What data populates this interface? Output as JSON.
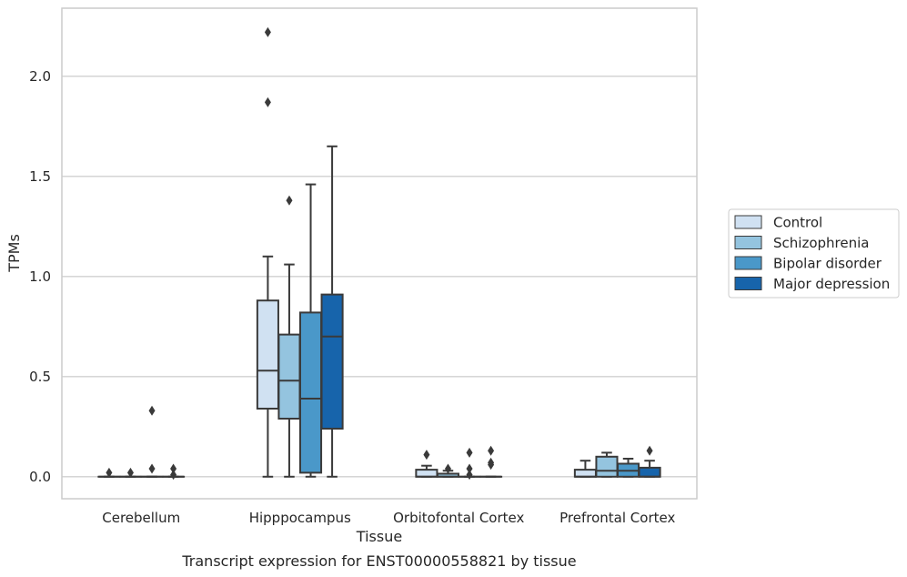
{
  "chart_data": {
    "type": "boxplot",
    "caption": "Transcript expression for ENST00000558821 by tissue",
    "xlabel": "Tissue",
    "ylabel": "TPMs",
    "ylim": [
      -0.11,
      2.34
    ],
    "yticks": [
      0.0,
      0.5,
      1.0,
      1.5,
      2.0
    ],
    "ytick_labels": [
      "0.0",
      "0.5",
      "1.0",
      "1.5",
      "2.0"
    ],
    "grid": "horizontal",
    "legend_position": "right",
    "categories": [
      "Cerebellum",
      "Hipppocampus",
      "Orbitofontal Cortex",
      "Prefrontal Cortex"
    ],
    "series": [
      {
        "name": "Control",
        "color": "#d0e1f2",
        "boxes": [
          {
            "whislo": 0.0,
            "q1": 0.0,
            "med": 0.0,
            "q3": 0.0,
            "whishi": 0.0,
            "fliers": [
              0.02
            ]
          },
          {
            "whislo": 0.0,
            "q1": 0.34,
            "med": 0.53,
            "q3": 0.88,
            "whishi": 1.1,
            "fliers": [
              1.87,
              2.22
            ]
          },
          {
            "whislo": 0.0,
            "q1": 0.0,
            "med": 0.0,
            "q3": 0.035,
            "whishi": 0.055,
            "fliers": [
              0.11
            ]
          },
          {
            "whislo": 0.0,
            "q1": 0.0,
            "med": 0.0,
            "q3": 0.035,
            "whishi": 0.08,
            "fliers": []
          }
        ]
      },
      {
        "name": "Schizophrenia",
        "color": "#94c4df",
        "boxes": [
          {
            "whislo": 0.0,
            "q1": 0.0,
            "med": 0.0,
            "q3": 0.0,
            "whishi": 0.0,
            "fliers": [
              0.02
            ]
          },
          {
            "whislo": 0.0,
            "q1": 0.29,
            "med": 0.48,
            "q3": 0.71,
            "whishi": 1.06,
            "fliers": [
              1.38
            ]
          },
          {
            "whislo": 0.0,
            "q1": 0.0,
            "med": 0.0,
            "q3": 0.015,
            "whishi": 0.03,
            "fliers": [
              0.04
            ]
          },
          {
            "whislo": 0.0,
            "q1": 0.0,
            "med": 0.03,
            "q3": 0.1,
            "whishi": 0.12,
            "fliers": []
          }
        ]
      },
      {
        "name": "Bipolar disorder",
        "color": "#4a98c9",
        "boxes": [
          {
            "whislo": 0.0,
            "q1": 0.0,
            "med": 0.0,
            "q3": 0.0,
            "whishi": 0.0,
            "fliers": [
              0.04,
              0.33
            ]
          },
          {
            "whislo": 0.0,
            "q1": 0.02,
            "med": 0.39,
            "q3": 0.82,
            "whishi": 1.46,
            "fliers": []
          },
          {
            "whislo": 0.0,
            "q1": 0.0,
            "med": 0.0,
            "q3": 0.0,
            "whishi": 0.0,
            "fliers": [
              0.01,
              0.04,
              0.12
            ]
          },
          {
            "whislo": 0.0,
            "q1": 0.0,
            "med": 0.03,
            "q3": 0.065,
            "whishi": 0.09,
            "fliers": []
          }
        ]
      },
      {
        "name": "Major depression",
        "color": "#1764ab",
        "boxes": [
          {
            "whislo": 0.0,
            "q1": 0.0,
            "med": 0.0,
            "q3": 0.0,
            "whishi": 0.0,
            "fliers": [
              0.01,
              0.04
            ]
          },
          {
            "whislo": 0.0,
            "q1": 0.24,
            "med": 0.7,
            "q3": 0.91,
            "whishi": 1.65,
            "fliers": []
          },
          {
            "whislo": 0.0,
            "q1": 0.0,
            "med": 0.0,
            "q3": 0.0,
            "whishi": 0.0,
            "fliers": [
              0.06,
              0.07,
              0.13
            ]
          },
          {
            "whislo": 0.0,
            "q1": 0.0,
            "med": 0.0,
            "q3": 0.045,
            "whishi": 0.08,
            "fliers": [
              0.13
            ]
          }
        ]
      }
    ]
  }
}
